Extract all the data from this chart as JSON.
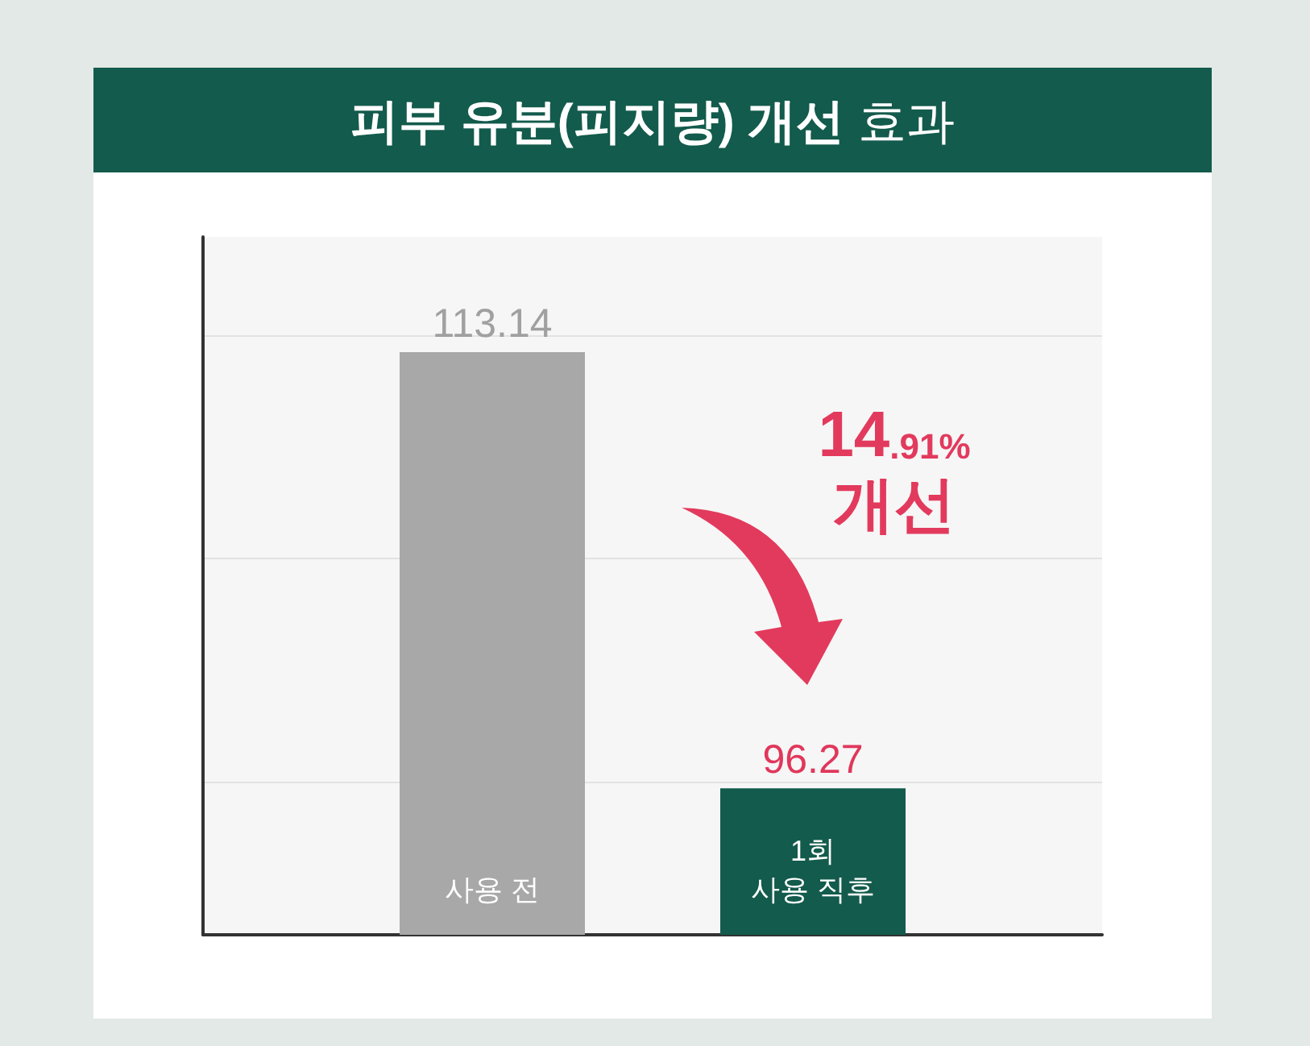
{
  "chart_data": {
    "type": "bar",
    "title": "피부 유분(피지량) 개선 효과",
    "categories": [
      "사용 전",
      "1회 사용 직후"
    ],
    "values": [
      113.14,
      96.27
    ],
    "colors": [
      "#a7a8a7",
      "#135b4c"
    ],
    "data_labels": true,
    "ylim": [
      90.6,
      117.6
    ],
    "yticks": [
      {
        "value": 96.5,
        "label": null
      },
      {
        "value": 105.2,
        "label": null
      },
      {
        "value": 113.8,
        "label": null
      }
    ],
    "grid": "y",
    "tick_labels": "x",
    "annotations": [
      "14.91%\n개선"
    ]
  }
}
